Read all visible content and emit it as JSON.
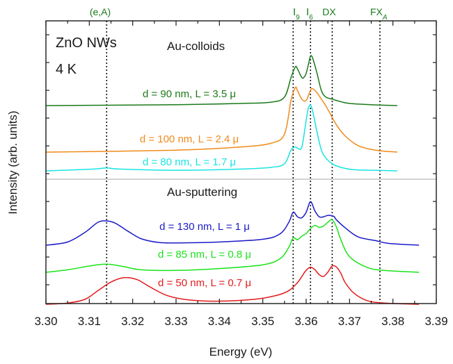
{
  "chart_data": {
    "type": "line",
    "xlabel": "Energy (eV)",
    "ylabel": "Intensity (arb. units)",
    "xlim": [
      3.3,
      3.39
    ],
    "x_ticks": [
      "3.30",
      "3.31",
      "3.32",
      "3.33",
      "3.34",
      "3.35",
      "3.36",
      "3.37",
      "3.38",
      "3.39"
    ],
    "grid": false,
    "annotations": {
      "sample": "ZnO NWs",
      "temperature": "4 K",
      "group_top": "Au-colloids",
      "group_bottom": "Au-sputtering"
    },
    "reference_lines": [
      {
        "label": "(e,A)",
        "x": 3.314
      },
      {
        "label": "I9",
        "x": 3.357
      },
      {
        "label": "I6",
        "x": 3.361
      },
      {
        "label": "DX",
        "x": 3.366
      },
      {
        "label": "FXA",
        "x": 3.377
      }
    ],
    "series": [
      {
        "name": "d = 90 nm, L = 3.5 μ",
        "color": "#1a7a1a",
        "x": [
          3.3,
          3.33,
          3.345,
          3.352,
          3.355,
          3.3565,
          3.3575,
          3.358,
          3.359,
          3.3595,
          3.36,
          3.3605,
          3.361,
          3.3615,
          3.3625,
          3.3635,
          3.3645,
          3.366,
          3.368,
          3.37,
          3.375,
          3.381
        ],
        "y": [
          0.0,
          0.02,
          0.05,
          0.08,
          0.2,
          0.65,
          0.9,
          0.85,
          0.65,
          0.66,
          0.75,
          0.95,
          1.15,
          1.1,
          0.75,
          0.35,
          0.2,
          0.15,
          0.09,
          0.05,
          0.02,
          0.0
        ]
      },
      {
        "name": "d = 100 nm, L = 2.4 μ",
        "color": "#f08a1a",
        "x": [
          3.3,
          3.33,
          3.345,
          3.352,
          3.355,
          3.3565,
          3.3575,
          3.358,
          3.359,
          3.36,
          3.361,
          3.3615,
          3.3625,
          3.3635,
          3.3645,
          3.3655,
          3.367,
          3.369,
          3.372,
          3.376,
          3.381
        ],
        "y": [
          0.0,
          0.03,
          0.08,
          0.14,
          0.28,
          0.8,
          1.0,
          0.95,
          0.82,
          0.8,
          0.96,
          0.98,
          0.92,
          0.82,
          0.72,
          0.6,
          0.42,
          0.25,
          0.1,
          0.03,
          0.0
        ]
      },
      {
        "name": "d = 80 nm, L = 1.7 μ",
        "color": "#1ae3e3",
        "x": [
          3.3,
          3.311,
          3.314,
          3.317,
          3.33,
          3.345,
          3.352,
          3.355,
          3.3565,
          3.3575,
          3.358,
          3.359,
          3.36,
          3.3605,
          3.361,
          3.3615,
          3.3625,
          3.3635,
          3.3645,
          3.366,
          3.368,
          3.371,
          3.376,
          3.381
        ],
        "y": [
          0.0,
          0.03,
          0.05,
          0.03,
          0.01,
          0.03,
          0.06,
          0.12,
          0.35,
          0.4,
          0.38,
          0.4,
          0.85,
          1.05,
          1.1,
          1.0,
          0.65,
          0.35,
          0.22,
          0.12,
          0.06,
          0.02,
          0.01,
          0.0
        ]
      },
      {
        "name": "d = 130 nm, L = 1 μ",
        "color": "#1a1ac8",
        "x": [
          3.3,
          3.305,
          3.309,
          3.312,
          3.314,
          3.316,
          3.319,
          3.322,
          3.326,
          3.33,
          3.34,
          3.35,
          3.354,
          3.356,
          3.357,
          3.358,
          3.359,
          3.36,
          3.361,
          3.362,
          3.363,
          3.364,
          3.365,
          3.366,
          3.3665,
          3.367,
          3.369,
          3.372,
          3.376,
          3.379,
          3.386
        ],
        "y": [
          0.0,
          0.07,
          0.28,
          0.5,
          0.53,
          0.48,
          0.3,
          0.14,
          0.06,
          0.05,
          0.07,
          0.13,
          0.25,
          0.5,
          0.72,
          0.62,
          0.6,
          0.72,
          0.95,
          0.75,
          0.62,
          0.62,
          0.65,
          0.64,
          0.62,
          0.55,
          0.38,
          0.18,
          0.1,
          0.04,
          0.0
        ]
      },
      {
        "name": "d = 85 nm, L = 0.8 μ",
        "color": "#1ae31a",
        "x": [
          3.3,
          3.305,
          3.31,
          3.314,
          3.318,
          3.322,
          3.33,
          3.34,
          3.35,
          3.354,
          3.356,
          3.357,
          3.358,
          3.359,
          3.36,
          3.361,
          3.362,
          3.363,
          3.364,
          3.365,
          3.366,
          3.367,
          3.368,
          3.37,
          3.374,
          3.378,
          3.386
        ],
        "y": [
          0.0,
          0.04,
          0.1,
          0.13,
          0.09,
          0.04,
          0.03,
          0.06,
          0.12,
          0.22,
          0.4,
          0.55,
          0.52,
          0.58,
          0.62,
          0.7,
          0.75,
          0.72,
          0.74,
          0.8,
          0.84,
          0.72,
          0.52,
          0.25,
          0.08,
          0.03,
          0.0
        ]
      },
      {
        "name": "d = 50 nm, L = 0.7 μ",
        "color": "#e31a1a",
        "x": [
          3.3,
          3.305,
          3.309,
          3.312,
          3.315,
          3.318,
          3.321,
          3.324,
          3.328,
          3.333,
          3.34,
          3.348,
          3.353,
          3.356,
          3.358,
          3.359,
          3.36,
          3.361,
          3.362,
          3.363,
          3.364,
          3.365,
          3.366,
          3.367,
          3.368,
          3.369,
          3.371,
          3.374,
          3.378,
          3.386
        ],
        "y": [
          0.0,
          0.02,
          0.08,
          0.22,
          0.36,
          0.43,
          0.4,
          0.28,
          0.14,
          0.07,
          0.05,
          0.08,
          0.14,
          0.22,
          0.35,
          0.45,
          0.55,
          0.6,
          0.56,
          0.48,
          0.45,
          0.52,
          0.62,
          0.6,
          0.5,
          0.35,
          0.18,
          0.06,
          0.02,
          0.0
        ]
      }
    ]
  }
}
